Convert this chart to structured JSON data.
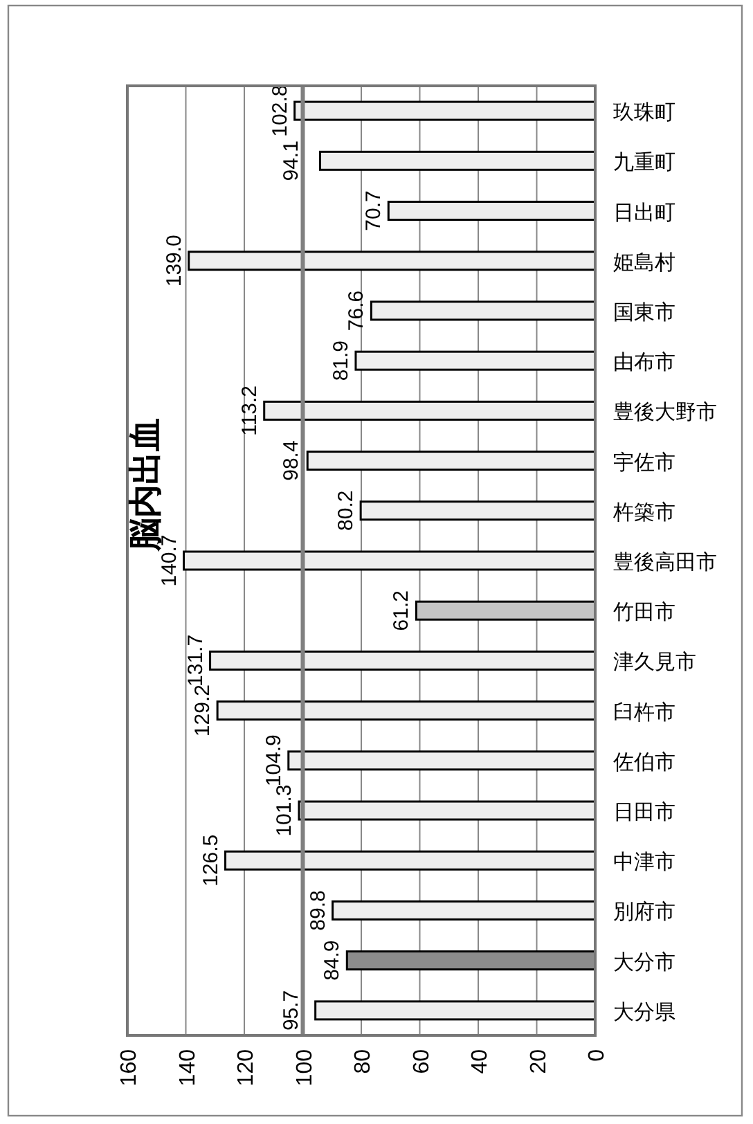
{
  "chart_data": {
    "type": "bar",
    "orientation": "horizontal",
    "title": "脳内出血",
    "categories": [
      "玖珠町",
      "九重町",
      "日出町",
      "姫島村",
      "国東市",
      "由布市",
      "豊後大野市",
      "宇佐市",
      "杵築市",
      "豊後高田市",
      "竹田市",
      "津久見市",
      "臼杵市",
      "佐伯市",
      "日田市",
      "中津市",
      "別府市",
      "大分市",
      "大分県"
    ],
    "values": [
      102.8,
      94.1,
      70.7,
      139.0,
      76.6,
      81.9,
      113.2,
      98.4,
      80.2,
      140.7,
      61.2,
      131.7,
      129.2,
      104.9,
      101.3,
      126.5,
      89.8,
      84.9,
      95.7
    ],
    "value_labels": [
      "102.8",
      "94.1",
      "70.7",
      "139.0",
      "76.6",
      "81.9",
      "113.2",
      "98.4",
      "80.2",
      "140.7",
      "61.2",
      "131.7",
      "129.2",
      "104.9",
      "101.3",
      "126.5",
      "89.8",
      "84.9",
      "95.7"
    ],
    "colors": [
      "#eeeeee",
      "#eeeeee",
      "#eeeeee",
      "#eeeeee",
      "#eeeeee",
      "#eeeeee",
      "#eeeeee",
      "#eeeeee",
      "#eeeeee",
      "#eeeeee",
      "#c4c4c4",
      "#eeeeee",
      "#eeeeee",
      "#eeeeee",
      "#eeeeee",
      "#eeeeee",
      "#eeeeee",
      "#8c8c8c",
      "#eeeeee"
    ],
    "xlim": [
      160,
      0
    ],
    "xticks": [
      160,
      140,
      120,
      100,
      80,
      60,
      40,
      20,
      0
    ],
    "grid": "x",
    "ref_lines": [
      {
        "axis": "x",
        "value": 100,
        "color": "#808080"
      }
    ]
  }
}
